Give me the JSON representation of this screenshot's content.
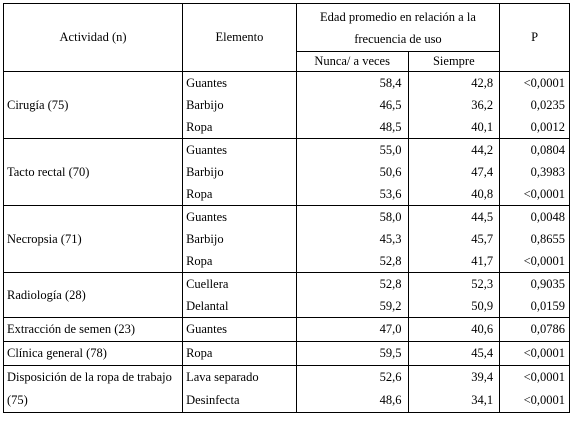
{
  "header": {
    "actividad": "Actividad (n)",
    "elemento": "Elemento",
    "edad": "Edad promedio en relación a la frecuencia de uso",
    "nunca": "Nunca/ a veces",
    "siempre": "Siempre",
    "p": "P"
  },
  "groups": [
    {
      "actividad": "Cirugía (75)",
      "rows": [
        {
          "elemento": "Guantes",
          "nunca": "58,4",
          "siempre": "42,8",
          "p": "<0,0001"
        },
        {
          "elemento": "Barbijo",
          "nunca": "46,5",
          "siempre": "36,2",
          "p": "0,0235"
        },
        {
          "elemento": "Ropa",
          "nunca": "48,5",
          "siempre": "40,1",
          "p": "0,0012"
        }
      ]
    },
    {
      "actividad": "Tacto rectal (70)",
      "rows": [
        {
          "elemento": "Guantes",
          "nunca": "55,0",
          "siempre": "44,2",
          "p": "0,0804"
        },
        {
          "elemento": "Barbijo",
          "nunca": "50,6",
          "siempre": "47,4",
          "p": "0,3983"
        },
        {
          "elemento": "Ropa",
          "nunca": "53,6",
          "siempre": "40,8",
          "p": "<0,0001"
        }
      ]
    },
    {
      "actividad": "Necropsia (71)",
      "rows": [
        {
          "elemento": "Guantes",
          "nunca": "58,0",
          "siempre": "44,5",
          "p": "0,0048"
        },
        {
          "elemento": "Barbijo",
          "nunca": "45,3",
          "siempre": "45,7",
          "p": "0,8655"
        },
        {
          "elemento": "Ropa",
          "nunca": "52,8",
          "siempre": "41,7",
          "p": "<0,0001"
        }
      ]
    },
    {
      "actividad": "Radiología (28)",
      "rows": [
        {
          "elemento": "Cuellera",
          "nunca": "52,8",
          "siempre": "52,3",
          "p": "0,9035"
        },
        {
          "elemento": "Delantal",
          "nunca": "59,2",
          "siempre": "50,9",
          "p": "0,0159"
        }
      ]
    },
    {
      "actividad": "Extracción de semen (23)",
      "rows": [
        {
          "elemento": "Guantes",
          "nunca": "47,0",
          "siempre": "40,6",
          "p": "0,0786"
        }
      ]
    },
    {
      "actividad": "Clínica general (78)",
      "rows": [
        {
          "elemento": "Ropa",
          "nunca": "59,5",
          "siempre": "45,4",
          "p": "<0,0001"
        }
      ]
    },
    {
      "actividad": "Disposición de la ropa de trabajo (75)",
      "rows": [
        {
          "elemento": "Lava separado",
          "nunca": "52,6",
          "siempre": "39,4",
          "p": "<0,0001"
        },
        {
          "elemento": "Desinfecta",
          "nunca": "48,6",
          "siempre": "34,1",
          "p": "<0,0001"
        }
      ]
    }
  ]
}
